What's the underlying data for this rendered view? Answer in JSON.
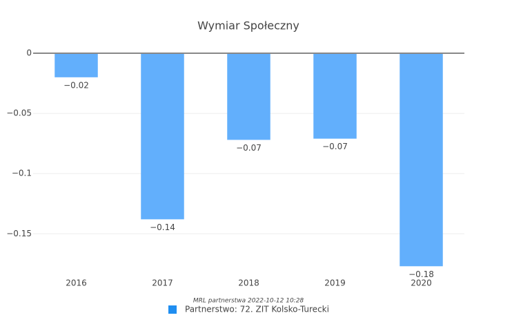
{
  "chart_data": {
    "type": "bar",
    "title": "Wymiar Społeczny",
    "categories": [
      "2016",
      "2017",
      "2018",
      "2019",
      "2020"
    ],
    "values": [
      -0.02,
      -0.138,
      -0.072,
      -0.071,
      -0.177
    ],
    "value_labels": [
      "−0.02",
      "−0.14",
      "−0.07",
      "−0.07",
      "−0.18"
    ],
    "color": "#62affc",
    "ylim": [
      -0.182,
      0
    ],
    "yticks": [
      0,
      {
        "value": -0.05,
        "label": "−0.05"
      },
      {
        "value": -0.1,
        "label": "−0.1"
      },
      {
        "value": -0.15,
        "label": "−0.15"
      }
    ],
    "grid": true,
    "annotation": "MRL partnerstwa 2022-10-12 10:28",
    "legend": {
      "name": "Partnerstwo: 72. ZIT Kolsko-Turecki",
      "color": "#1f8ef1"
    }
  }
}
